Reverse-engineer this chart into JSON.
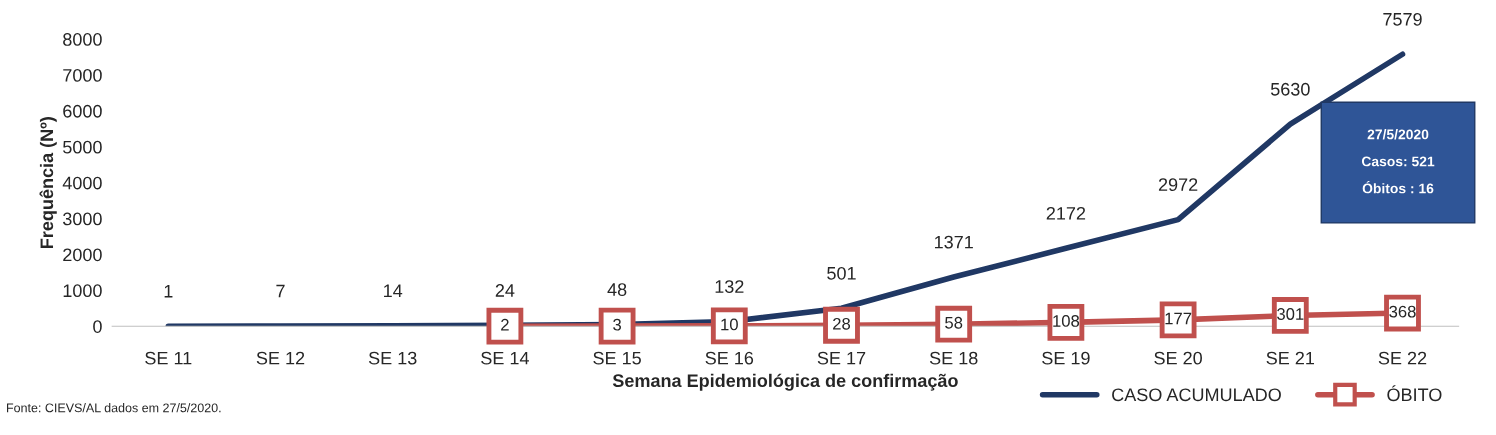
{
  "chart_data": {
    "type": "line",
    "xlabel": "Semana Epidemiológica de confirmação",
    "ylabel": "Frequência (Nº)",
    "categories": [
      "SE 11",
      "SE 12",
      "SE 13",
      "SE 14",
      "SE 15",
      "SE 16",
      "SE 17",
      "SE 18",
      "SE 19",
      "SE 20",
      "SE 21",
      "SE 22"
    ],
    "series": [
      {
        "name": "CASO ACUMULADO",
        "color": "#203864",
        "marker": "none",
        "values": [
          1,
          7,
          14,
          24,
          48,
          132,
          501,
          1371,
          2172,
          2972,
          5630,
          7579
        ]
      },
      {
        "name": "ÓBITO",
        "color": "#c0504d",
        "marker": "square",
        "values": [
          null,
          null,
          null,
          2,
          3,
          10,
          28,
          58,
          108,
          177,
          301,
          368
        ]
      }
    ],
    "ylim": [
      0,
      8000
    ],
    "yticks": [
      0,
      1000,
      2000,
      3000,
      4000,
      5000,
      6000,
      7000,
      8000
    ],
    "data_labels": true,
    "legend": "bottom right",
    "line_style": "solid",
    "annotations": [
      "27/5/2020\nCasos: 521\nÓbitos : 16",
      "Fonte: CIEVS/AL dados em 27/5/2020."
    ]
  }
}
